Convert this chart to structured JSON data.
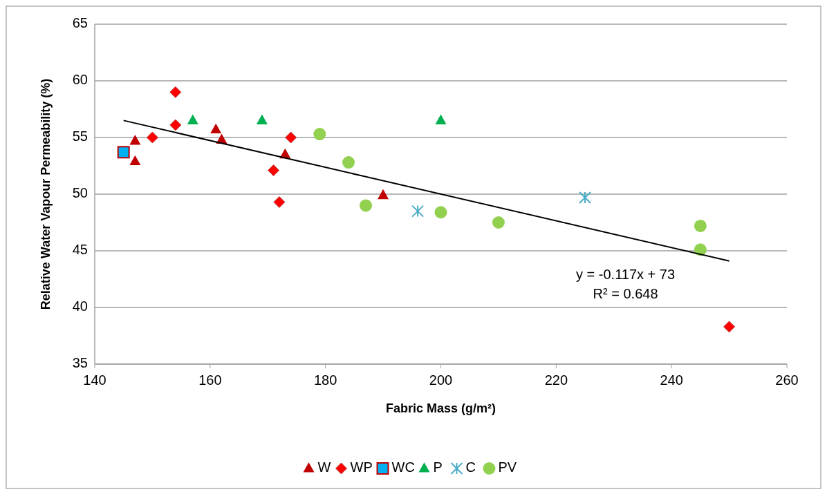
{
  "chart_data": {
    "type": "scatter",
    "xlabel": "Fabric Mass (g/m²)",
    "ylabel": "Relative Water Vapour Permeability (%)",
    "xlim": [
      140,
      260
    ],
    "xticks": [
      140,
      160,
      180,
      200,
      220,
      240,
      260
    ],
    "ylim": [
      35,
      65
    ],
    "yticks": [
      35,
      40,
      45,
      50,
      55,
      60,
      65
    ],
    "grid": "y",
    "legend": "bottom",
    "series": [
      {
        "name": "W",
        "color": "#c00000",
        "marker": "triangle",
        "x": [
          147,
          147,
          161,
          162,
          173,
          190
        ],
        "values": [
          54.7,
          52.9,
          55.7,
          54.8,
          53.5,
          49.9
        ]
      },
      {
        "name": "WP",
        "color": "#ff0000",
        "marker": "diamond",
        "x": [
          154,
          154,
          150,
          174,
          171,
          172,
          250
        ],
        "values": [
          59.0,
          56.1,
          55.0,
          55.0,
          52.1,
          49.3,
          38.3
        ]
      },
      {
        "name": "WC",
        "color": "#00b0f0",
        "marker": "square",
        "x": [
          145
        ],
        "values": [
          53.7
        ]
      },
      {
        "name": "P",
        "color": "#00b050",
        "marker": "triangle",
        "x": [
          157,
          169,
          200
        ],
        "values": [
          56.5,
          56.5,
          56.5
        ]
      },
      {
        "name": "C",
        "color": "#4bacc6",
        "marker": "cross",
        "x": [
          196,
          225
        ],
        "values": [
          48.5,
          49.7
        ]
      },
      {
        "name": "PV",
        "color": "#92d050",
        "marker": "circle",
        "x": [
          179,
          184,
          187,
          200,
          210,
          245,
          245
        ],
        "values": [
          55.3,
          52.8,
          49.0,
          48.4,
          47.5,
          47.2,
          45.1
        ]
      },
      {
        "type": "line",
        "color": "#000000",
        "marker": "none",
        "x": [
          145,
          250
        ],
        "values": [
          56.5,
          44.1
        ]
      }
    ],
    "annotations": [
      "y = -0.117x + 73",
      "R² = 0.648"
    ]
  }
}
